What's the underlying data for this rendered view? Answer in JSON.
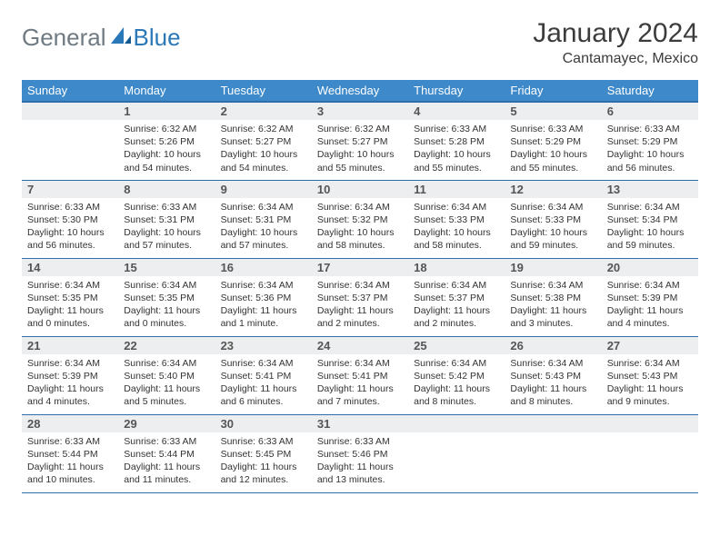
{
  "logo": {
    "general": "General",
    "blue": "Blue"
  },
  "title": "January 2024",
  "location": "Cantamayec, Mexico",
  "colors": {
    "header_bg": "#3d89ca",
    "header_border": "#2d6fa8",
    "daynum_bg": "#eceeef",
    "logo_gray": "#6f7a82",
    "logo_blue": "#2a78b8",
    "text": "#3c3c3c",
    "background": "#ffffff"
  },
  "daysOfWeek": [
    "Sunday",
    "Monday",
    "Tuesday",
    "Wednesday",
    "Thursday",
    "Friday",
    "Saturday"
  ],
  "weeks": [
    [
      null,
      {
        "n": "1",
        "sr": "6:32 AM",
        "ss": "5:26 PM",
        "dl": "10 hours and 54 minutes."
      },
      {
        "n": "2",
        "sr": "6:32 AM",
        "ss": "5:27 PM",
        "dl": "10 hours and 54 minutes."
      },
      {
        "n": "3",
        "sr": "6:32 AM",
        "ss": "5:27 PM",
        "dl": "10 hours and 55 minutes."
      },
      {
        "n": "4",
        "sr": "6:33 AM",
        "ss": "5:28 PM",
        "dl": "10 hours and 55 minutes."
      },
      {
        "n": "5",
        "sr": "6:33 AM",
        "ss": "5:29 PM",
        "dl": "10 hours and 55 minutes."
      },
      {
        "n": "6",
        "sr": "6:33 AM",
        "ss": "5:29 PM",
        "dl": "10 hours and 56 minutes."
      }
    ],
    [
      {
        "n": "7",
        "sr": "6:33 AM",
        "ss": "5:30 PM",
        "dl": "10 hours and 56 minutes."
      },
      {
        "n": "8",
        "sr": "6:33 AM",
        "ss": "5:31 PM",
        "dl": "10 hours and 57 minutes."
      },
      {
        "n": "9",
        "sr": "6:34 AM",
        "ss": "5:31 PM",
        "dl": "10 hours and 57 minutes."
      },
      {
        "n": "10",
        "sr": "6:34 AM",
        "ss": "5:32 PM",
        "dl": "10 hours and 58 minutes."
      },
      {
        "n": "11",
        "sr": "6:34 AM",
        "ss": "5:33 PM",
        "dl": "10 hours and 58 minutes."
      },
      {
        "n": "12",
        "sr": "6:34 AM",
        "ss": "5:33 PM",
        "dl": "10 hours and 59 minutes."
      },
      {
        "n": "13",
        "sr": "6:34 AM",
        "ss": "5:34 PM",
        "dl": "10 hours and 59 minutes."
      }
    ],
    [
      {
        "n": "14",
        "sr": "6:34 AM",
        "ss": "5:35 PM",
        "dl": "11 hours and 0 minutes."
      },
      {
        "n": "15",
        "sr": "6:34 AM",
        "ss": "5:35 PM",
        "dl": "11 hours and 0 minutes."
      },
      {
        "n": "16",
        "sr": "6:34 AM",
        "ss": "5:36 PM",
        "dl": "11 hours and 1 minute."
      },
      {
        "n": "17",
        "sr": "6:34 AM",
        "ss": "5:37 PM",
        "dl": "11 hours and 2 minutes."
      },
      {
        "n": "18",
        "sr": "6:34 AM",
        "ss": "5:37 PM",
        "dl": "11 hours and 2 minutes."
      },
      {
        "n": "19",
        "sr": "6:34 AM",
        "ss": "5:38 PM",
        "dl": "11 hours and 3 minutes."
      },
      {
        "n": "20",
        "sr": "6:34 AM",
        "ss": "5:39 PM",
        "dl": "11 hours and 4 minutes."
      }
    ],
    [
      {
        "n": "21",
        "sr": "6:34 AM",
        "ss": "5:39 PM",
        "dl": "11 hours and 4 minutes."
      },
      {
        "n": "22",
        "sr": "6:34 AM",
        "ss": "5:40 PM",
        "dl": "11 hours and 5 minutes."
      },
      {
        "n": "23",
        "sr": "6:34 AM",
        "ss": "5:41 PM",
        "dl": "11 hours and 6 minutes."
      },
      {
        "n": "24",
        "sr": "6:34 AM",
        "ss": "5:41 PM",
        "dl": "11 hours and 7 minutes."
      },
      {
        "n": "25",
        "sr": "6:34 AM",
        "ss": "5:42 PM",
        "dl": "11 hours and 8 minutes."
      },
      {
        "n": "26",
        "sr": "6:34 AM",
        "ss": "5:43 PM",
        "dl": "11 hours and 8 minutes."
      },
      {
        "n": "27",
        "sr": "6:34 AM",
        "ss": "5:43 PM",
        "dl": "11 hours and 9 minutes."
      }
    ],
    [
      {
        "n": "28",
        "sr": "6:33 AM",
        "ss": "5:44 PM",
        "dl": "11 hours and 10 minutes."
      },
      {
        "n": "29",
        "sr": "6:33 AM",
        "ss": "5:44 PM",
        "dl": "11 hours and 11 minutes."
      },
      {
        "n": "30",
        "sr": "6:33 AM",
        "ss": "5:45 PM",
        "dl": "11 hours and 12 minutes."
      },
      {
        "n": "31",
        "sr": "6:33 AM",
        "ss": "5:46 PM",
        "dl": "11 hours and 13 minutes."
      },
      null,
      null,
      null
    ]
  ],
  "labels": {
    "sunrise": "Sunrise:",
    "sunset": "Sunset:",
    "daylight": "Daylight:"
  }
}
